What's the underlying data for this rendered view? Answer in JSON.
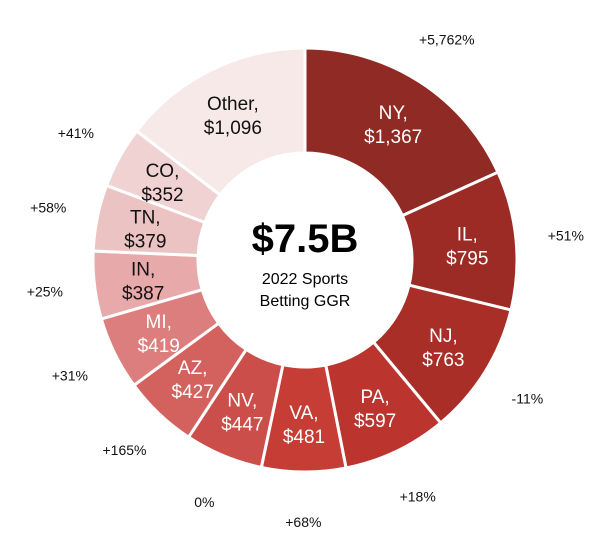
{
  "chart_data": {
    "type": "donut",
    "center_total": "$7.5B",
    "center_subtitle_lines": [
      "2022 Sports",
      "Betting GGR"
    ],
    "segments": [
      {
        "name": "NY",
        "value": 1367,
        "value_label": "$1,367",
        "change": "+5,762%",
        "color": "#8f2a24",
        "text_color": "#ffffff"
      },
      {
        "name": "IL",
        "value": 795,
        "value_label": "$795",
        "change": "+51%",
        "color": "#9b2b24",
        "text_color": "#ffffff"
      },
      {
        "name": "NJ",
        "value": 763,
        "value_label": "$763",
        "change": "-11%",
        "color": "#a92e27",
        "text_color": "#ffffff"
      },
      {
        "name": "PA",
        "value": 597,
        "value_label": "$597",
        "change": "+18%",
        "color": "#bb352e",
        "text_color": "#ffffff"
      },
      {
        "name": "VA",
        "value": 481,
        "value_label": "$481",
        "change": "+68%",
        "color": "#c63d35",
        "text_color": "#ffffff"
      },
      {
        "name": "NV",
        "value": 447,
        "value_label": "$447",
        "change": "0%",
        "color": "#cc4e4b",
        "text_color": "#ffffff"
      },
      {
        "name": "AZ",
        "value": 427,
        "value_label": "$427",
        "change": "+165%",
        "color": "#d3625f",
        "text_color": "#ffffff"
      },
      {
        "name": "MI",
        "value": 419,
        "value_label": "$419",
        "change": "+31%",
        "color": "#dc7e7d",
        "text_color": "#ffffff"
      },
      {
        "name": "IN",
        "value": 387,
        "value_label": "$387",
        "change": "+25%",
        "color": "#e7a9aa",
        "text_color": "#111111"
      },
      {
        "name": "TN",
        "value": 379,
        "value_label": "$379",
        "change": "+58%",
        "color": "#ecc3c3",
        "text_color": "#111111"
      },
      {
        "name": "CO",
        "value": 352,
        "value_label": "$352",
        "change": "+41%",
        "color": "#f0d2d2",
        "text_color": "#111111"
      },
      {
        "name": "Other",
        "value": 1096,
        "value_label": "$1,096",
        "change": "",
        "color": "#f8e9e9",
        "text_color": "#111111"
      }
    ]
  }
}
